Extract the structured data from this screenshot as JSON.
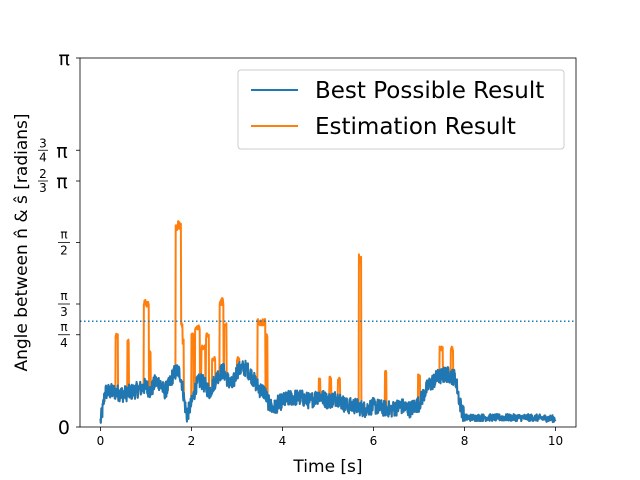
{
  "chart_data": {
    "type": "line",
    "title": "",
    "xlabel": "Time [s]",
    "ylabel": "Angle between n̂ & ŝ [radians]",
    "xlim": [
      -0.45,
      10.45
    ],
    "ylim": [
      0,
      3.1416
    ],
    "x_ticks": [
      {
        "value": 0,
        "label": "0"
      },
      {
        "value": 2,
        "label": "2"
      },
      {
        "value": 4,
        "label": "4"
      },
      {
        "value": 6,
        "label": "6"
      },
      {
        "value": 8,
        "label": "8"
      },
      {
        "value": 10,
        "label": "10"
      }
    ],
    "y_ticks": [
      {
        "value": 0,
        "label": "0",
        "kind": "plain"
      },
      {
        "value": 0.7854,
        "num": "π",
        "den": "4",
        "kind": "frac"
      },
      {
        "value": 1.0472,
        "num": "π",
        "den": "3",
        "kind": "frac"
      },
      {
        "value": 1.5708,
        "num": "π",
        "den": "2",
        "kind": "frac"
      },
      {
        "value": 2.0944,
        "num": "2",
        "den": "3",
        "sym": "π",
        "kind": "mixed"
      },
      {
        "value": 2.3562,
        "num": "3",
        "den": "4",
        "sym": "π",
        "kind": "mixed"
      },
      {
        "value": 3.1416,
        "label": "π",
        "kind": "plain"
      }
    ],
    "threshold": {
      "value": 0.9,
      "style": "dotted",
      "color": "#1f77b4"
    },
    "legend": {
      "position": "top-right"
    },
    "series": [
      {
        "name": "Estimation Result",
        "color": "#ff7f0e",
        "baseline": "follows Best Possible Result except at spikes",
        "spikes": [
          {
            "start": 0.33,
            "end": 0.38,
            "peak": 0.8
          },
          {
            "start": 0.59,
            "end": 0.62,
            "peak": 0.75
          },
          {
            "start": 0.95,
            "end": 1.06,
            "peak": 1.09
          },
          {
            "start": 1.08,
            "end": 1.1,
            "peak": 0.65
          },
          {
            "start": 1.65,
            "end": 1.77,
            "peak": 1.77
          },
          {
            "start": 1.77,
            "end": 1.8,
            "peak": 0.9
          },
          {
            "start": 1.8,
            "end": 1.83,
            "peak": 0.75
          },
          {
            "start": 2.0,
            "end": 2.04,
            "peak": 0.8
          },
          {
            "start": 2.08,
            "end": 2.18,
            "peak": 0.88
          },
          {
            "start": 2.22,
            "end": 2.3,
            "peak": 0.7
          },
          {
            "start": 2.32,
            "end": 2.38,
            "peak": 0.8
          },
          {
            "start": 2.45,
            "end": 2.52,
            "peak": 0.6
          },
          {
            "start": 2.62,
            "end": 2.7,
            "peak": 1.1
          },
          {
            "start": 2.72,
            "end": 2.77,
            "peak": 0.9
          },
          {
            "start": 3.0,
            "end": 3.05,
            "peak": 0.6
          },
          {
            "start": 3.45,
            "end": 3.62,
            "peak": 0.92
          },
          {
            "start": 3.64,
            "end": 3.67,
            "peak": 0.8
          },
          {
            "start": 4.8,
            "end": 4.83,
            "peak": 0.42
          },
          {
            "start": 5.03,
            "end": 5.07,
            "peak": 0.43
          },
          {
            "start": 5.22,
            "end": 5.26,
            "peak": 0.42
          },
          {
            "start": 5.68,
            "end": 5.73,
            "peak": 1.47
          },
          {
            "start": 6.25,
            "end": 6.28,
            "peak": 0.49
          },
          {
            "start": 6.98,
            "end": 7.02,
            "peak": 0.45
          },
          {
            "start": 7.45,
            "end": 7.52,
            "peak": 0.69
          },
          {
            "start": 7.7,
            "end": 7.75,
            "peak": 0.69
          }
        ]
      },
      {
        "name": "Best Possible Result",
        "color": "#1f77b4",
        "x": [
          0.0,
          0.05,
          0.1,
          0.3,
          0.5,
          0.7,
          0.9,
          1.0,
          1.1,
          1.2,
          1.3,
          1.4,
          1.5,
          1.6,
          1.7,
          1.75,
          1.8,
          1.85,
          1.9,
          2.0,
          2.1,
          2.2,
          2.3,
          2.4,
          2.5,
          2.6,
          2.7,
          2.8,
          2.9,
          3.0,
          3.1,
          3.2,
          3.3,
          3.4,
          3.5,
          3.6,
          3.7,
          3.8,
          3.9,
          4.0,
          4.2,
          4.4,
          4.6,
          4.8,
          5.0,
          5.2,
          5.4,
          5.6,
          5.8,
          6.0,
          6.2,
          6.4,
          6.6,
          6.8,
          7.0,
          7.2,
          7.4,
          7.6,
          7.8,
          7.9,
          8.0,
          8.5,
          9.0,
          9.5,
          10.0
        ],
        "values": [
          0.05,
          0.15,
          0.3,
          0.3,
          0.28,
          0.3,
          0.33,
          0.35,
          0.3,
          0.38,
          0.38,
          0.3,
          0.35,
          0.45,
          0.48,
          0.45,
          0.35,
          0.2,
          0.1,
          0.2,
          0.35,
          0.4,
          0.35,
          0.3,
          0.38,
          0.45,
          0.48,
          0.4,
          0.35,
          0.48,
          0.5,
          0.5,
          0.45,
          0.38,
          0.32,
          0.3,
          0.2,
          0.15,
          0.2,
          0.22,
          0.25,
          0.25,
          0.22,
          0.27,
          0.22,
          0.25,
          0.18,
          0.18,
          0.15,
          0.18,
          0.16,
          0.15,
          0.18,
          0.15,
          0.2,
          0.35,
          0.42,
          0.45,
          0.42,
          0.2,
          0.08,
          0.08,
          0.08,
          0.08,
          0.07
        ]
      }
    ]
  }
}
